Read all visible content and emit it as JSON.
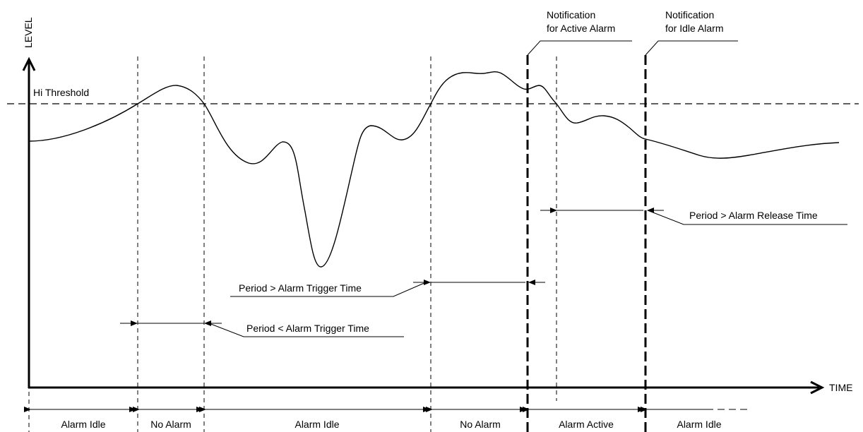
{
  "axes": {
    "y_label": "LEVEL",
    "x_label": "TIME"
  },
  "threshold_label": "Hi Threshold",
  "notifications": {
    "active_line1": "Notification",
    "active_line2": "for Active Alarm",
    "idle_line1": "Notification",
    "idle_line2": "for Idle Alarm"
  },
  "periods": {
    "release": "Period > Alarm Release Time",
    "trigger_gt": "Period > Alarm Trigger Time",
    "trigger_lt": "Period < Alarm Trigger Time"
  },
  "states": [
    "Alarm Idle",
    "No Alarm",
    "Alarm Idle",
    "No Alarm",
    "Alarm Active",
    "Alarm Idle"
  ]
}
